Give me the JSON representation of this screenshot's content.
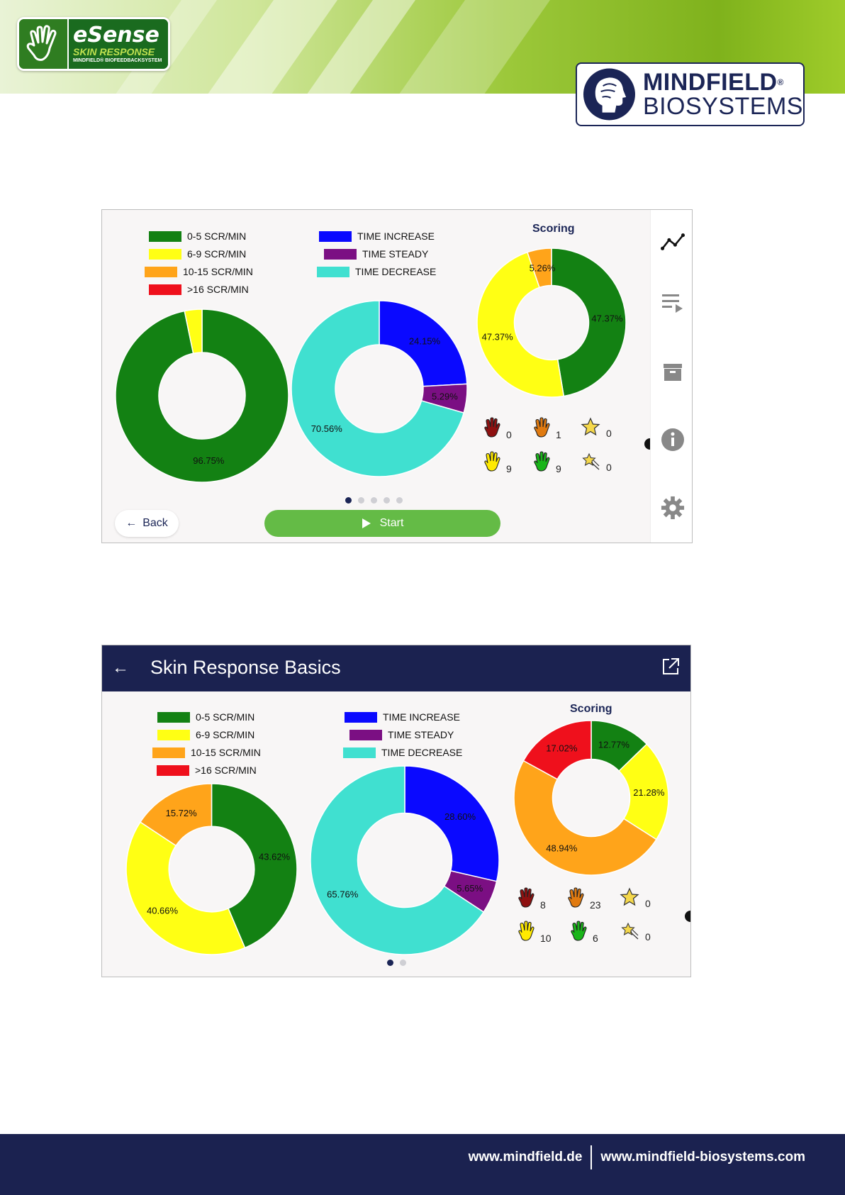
{
  "header": {
    "esense_logo": {
      "brand": "eSense",
      "product": "SKIN RESPONSE",
      "tagline": "MINDFIELD® BIOFEEDBACKSYSTEM"
    },
    "mindfield_logo": {
      "line1": "MINDFIELD",
      "line2": "BIOSYSTEMS",
      "reg": "®"
    }
  },
  "screen1": {
    "legend_rate": [
      {
        "label": "0-5 SCR/MIN",
        "color": "#138113"
      },
      {
        "label": "6-9 SCR/MIN",
        "color": "#ffff14"
      },
      {
        "label": "10-15 SCR/MIN",
        "color": "#ffa41a"
      },
      {
        "label": ">16 SCR/MIN",
        "color": "#ef101c"
      }
    ],
    "legend_time": [
      {
        "label": "TIME INCREASE",
        "color": "#0a09ff"
      },
      {
        "label": "TIME STEADY",
        "color": "#7b0f83"
      },
      {
        "label": "TIME DECREASE",
        "color": "#40e0d0"
      }
    ],
    "scoring_title": "Scoring",
    "scores": [
      {
        "icon": "red-hand",
        "color": "#8e1010",
        "value": "0"
      },
      {
        "icon": "orange-hand",
        "color": "#e07a10",
        "value": "1"
      },
      {
        "icon": "star",
        "color": "#f5d84b",
        "value": "0"
      },
      {
        "icon": "yellow-hand",
        "color": "#ffea00",
        "value": "9"
      },
      {
        "icon": "green-hand",
        "color": "#19b519",
        "value": "9"
      },
      {
        "icon": "shooting-star",
        "color": "#f5d84b",
        "value": "0"
      }
    ],
    "back_label": "Back",
    "start_label": "Start",
    "pager": {
      "pages": 5,
      "active": 0
    },
    "rail_icons": [
      "line-chart-icon",
      "playlist-icon",
      "archive-icon",
      "info-icon",
      "settings-icon"
    ]
  },
  "screen2": {
    "title": "Skin Response Basics",
    "legend_rate": [
      {
        "label": "0-5 SCR/MIN",
        "color": "#138113"
      },
      {
        "label": "6-9 SCR/MIN",
        "color": "#ffff14"
      },
      {
        "label": "10-15 SCR/MIN",
        "color": "#ffa41a"
      },
      {
        "label": ">16 SCR/MIN",
        "color": "#ef101c"
      }
    ],
    "legend_time": [
      {
        "label": "TIME INCREASE",
        "color": "#0a09ff"
      },
      {
        "label": "TIME STEADY",
        "color": "#7b0f83"
      },
      {
        "label": "TIME DECREASE",
        "color": "#40e0d0"
      }
    ],
    "scoring_title": "Scoring",
    "scores": [
      {
        "icon": "red-hand",
        "color": "#8e1010",
        "value": "8"
      },
      {
        "icon": "orange-hand",
        "color": "#e07a10",
        "value": "23"
      },
      {
        "icon": "star",
        "color": "#f5d84b",
        "value": "0"
      },
      {
        "icon": "yellow-hand",
        "color": "#ffea00",
        "value": "10"
      },
      {
        "icon": "green-hand",
        "color": "#19b519",
        "value": "6"
      },
      {
        "icon": "shooting-star",
        "color": "#f5d84b",
        "value": "0"
      }
    ],
    "pager": {
      "pages": 2,
      "active": 0
    }
  },
  "chart_data": [
    {
      "type": "pie",
      "id": "s1-rate",
      "slices": [
        {
          "name": "0-5 SCR/MIN",
          "value": 96.75,
          "label": "96.75%",
          "color": "#138113"
        },
        {
          "name": "6-9 SCR/MIN",
          "value": 3.25,
          "label": "",
          "color": "#ffff14"
        }
      ]
    },
    {
      "type": "pie",
      "id": "s1-time",
      "slices": [
        {
          "name": "TIME INCREASE",
          "value": 24.15,
          "label": "24.15%",
          "color": "#0a09ff"
        },
        {
          "name": "TIME STEADY",
          "value": 5.29,
          "label": "5.29%",
          "color": "#7b0f83"
        },
        {
          "name": "TIME DECREASE",
          "value": 70.56,
          "label": "70.56%",
          "color": "#40e0d0"
        }
      ]
    },
    {
      "type": "pie",
      "id": "s1-score",
      "title": "Scoring",
      "slices": [
        {
          "name": "0-5 SCR/MIN",
          "value": 47.37,
          "label": "47.37%",
          "color": "#138113"
        },
        {
          "name": "6-9 SCR/MIN",
          "value": 47.37,
          "label": "47.37%",
          "color": "#ffff14"
        },
        {
          "name": "10-15 SCR/MIN",
          "value": 5.26,
          "label": "5.26%",
          "color": "#ffa41a"
        }
      ]
    },
    {
      "type": "pie",
      "id": "s2-rate",
      "slices": [
        {
          "name": "0-5 SCR/MIN",
          "value": 43.62,
          "label": "43.62%",
          "color": "#138113"
        },
        {
          "name": "6-9 SCR/MIN",
          "value": 40.66,
          "label": "40.66%",
          "color": "#ffff14"
        },
        {
          "name": "10-15 SCR/MIN",
          "value": 15.72,
          "label": "15.72%",
          "color": "#ffa41a"
        }
      ]
    },
    {
      "type": "pie",
      "id": "s2-time",
      "slices": [
        {
          "name": "TIME INCREASE",
          "value": 28.6,
          "label": "28.60%",
          "color": "#0a09ff"
        },
        {
          "name": "TIME STEADY",
          "value": 5.65,
          "label": "5.65%",
          "color": "#7b0f83"
        },
        {
          "name": "TIME DECREASE",
          "value": 65.76,
          "label": "65.76%",
          "color": "#40e0d0"
        }
      ]
    },
    {
      "type": "pie",
      "id": "s2-score",
      "title": "Scoring",
      "slices": [
        {
          "name": "0-5 SCR/MIN",
          "value": 12.77,
          "label": "12.77%",
          "color": "#138113"
        },
        {
          "name": "6-9 SCR/MIN",
          "value": 21.28,
          "label": "21.28%",
          "color": "#ffff14"
        },
        {
          "name": "10-15 SCR/MIN",
          "value": 48.94,
          "label": "48.94%",
          "color": "#ffa41a"
        },
        {
          "name": ">16 SCR/MIN",
          "value": 17.02,
          "label": "17.02%",
          "color": "#ef101c"
        }
      ]
    }
  ],
  "footer": {
    "link1": "www.mindfield.de",
    "link2": "www.mindfield-biosystems.com"
  }
}
